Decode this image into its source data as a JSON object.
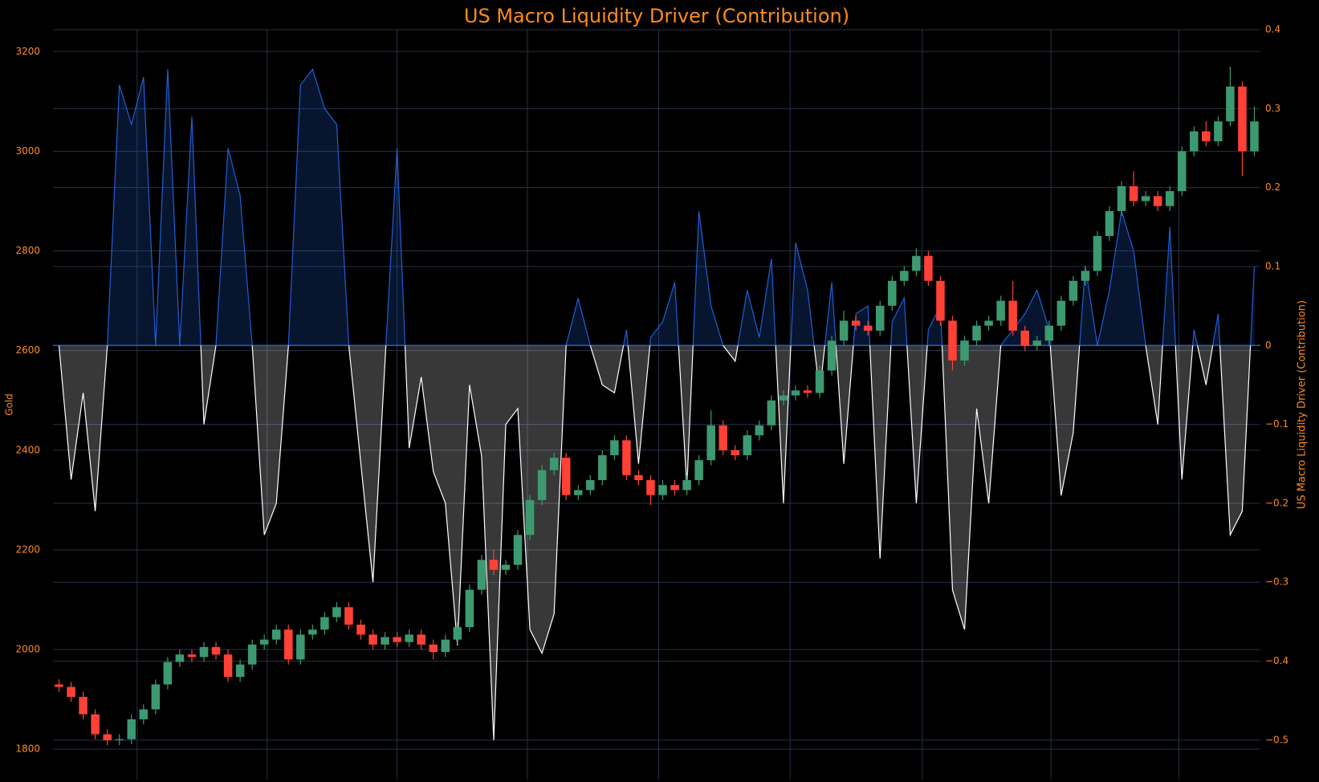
{
  "chart_data": [
    {
      "type": "candlestick",
      "title": "US Macro Liquidity Driver (Contribution)",
      "y_label": "Gold",
      "ylim": [
        1739,
        3244
      ],
      "yticks": [
        1800,
        2000,
        2200,
        2400,
        2600,
        2800,
        3000,
        3200
      ],
      "grid": true,
      "up_color": "#3d9970",
      "down_color": "#ff4136",
      "open": [
        1930,
        1925,
        1905,
        1870,
        1830,
        1818,
        1820,
        1860,
        1880,
        1930,
        1975,
        1990,
        1985,
        2005,
        1990,
        1945,
        1970,
        2010,
        2020,
        2040,
        1980,
        2030,
        2040,
        2065,
        2085,
        2050,
        2030,
        2010,
        2025,
        2015,
        2030,
        2010,
        1995,
        2020,
        2045,
        2120,
        2180,
        2160,
        2170,
        2230,
        2300,
        2360,
        2385,
        2310,
        2320,
        2340,
        2390,
        2420,
        2350,
        2340,
        2310,
        2330,
        2320,
        2340,
        2380,
        2450,
        2400,
        2390,
        2430,
        2450,
        2500,
        2510,
        2520,
        2515,
        2560,
        2620,
        2660,
        2650,
        2640,
        2690,
        2740,
        2760,
        2790,
        2740,
        2660,
        2580,
        2620,
        2650,
        2660,
        2700,
        2640,
        2610,
        2620,
        2650,
        2700,
        2740,
        2760,
        2830,
        2880,
        2930,
        2900,
        2910,
        2890,
        2920,
        3000,
        3040,
        3020,
        3060,
        3130,
        3000
      ],
      "high": [
        1940,
        1935,
        1915,
        1880,
        1840,
        1830,
        1870,
        1890,
        1940,
        1985,
        2000,
        2000,
        2015,
        2015,
        2000,
        1980,
        2020,
        2030,
        2050,
        2050,
        2040,
        2050,
        2075,
        2095,
        2095,
        2060,
        2040,
        2035,
        2035,
        2040,
        2040,
        2020,
        2030,
        2055,
        2130,
        2190,
        2200,
        2180,
        2240,
        2310,
        2370,
        2395,
        2395,
        2330,
        2350,
        2400,
        2430,
        2430,
        2360,
        2350,
        2340,
        2340,
        2350,
        2390,
        2480,
        2460,
        2410,
        2440,
        2460,
        2510,
        2520,
        2530,
        2530,
        2570,
        2630,
        2680,
        2670,
        2660,
        2700,
        2750,
        2770,
        2805,
        2800,
        2750,
        2670,
        2630,
        2660,
        2670,
        2710,
        2740,
        2650,
        2630,
        2660,
        2710,
        2750,
        2770,
        2840,
        2890,
        2940,
        2960,
        2920,
        2920,
        2930,
        3010,
        3050,
        3060,
        3070,
        3170,
        3140,
        3090
      ],
      "low": [
        1915,
        1895,
        1860,
        1820,
        1808,
        1808,
        1810,
        1850,
        1870,
        1920,
        1965,
        1975,
        1975,
        1980,
        1935,
        1935,
        1960,
        2000,
        2010,
        1970,
        1970,
        2020,
        2030,
        2055,
        2040,
        2020,
        2000,
        2000,
        2005,
        2005,
        2000,
        1980,
        1985,
        2010,
        2035,
        2110,
        2150,
        2150,
        2160,
        2220,
        2290,
        2350,
        2300,
        2300,
        2310,
        2330,
        2380,
        2340,
        2330,
        2290,
        2300,
        2310,
        2310,
        2330,
        2370,
        2390,
        2380,
        2380,
        2420,
        2440,
        2490,
        2500,
        2505,
        2505,
        2550,
        2610,
        2640,
        2630,
        2630,
        2680,
        2730,
        2750,
        2730,
        2650,
        2560,
        2570,
        2610,
        2640,
        2650,
        2630,
        2600,
        2600,
        2610,
        2640,
        2690,
        2730,
        2750,
        2820,
        2870,
        2890,
        2890,
        2880,
        2880,
        2910,
        2990,
        3010,
        3010,
        3050,
        2950,
        2990
      ],
      "close": [
        1925,
        1905,
        1870,
        1830,
        1818,
        1820,
        1860,
        1880,
        1930,
        1975,
        1990,
        1985,
        2005,
        1990,
        1945,
        1970,
        2010,
        2020,
        2040,
        1980,
        2030,
        2040,
        2065,
        2085,
        2050,
        2030,
        2010,
        2025,
        2015,
        2030,
        2010,
        1995,
        2020,
        2045,
        2120,
        2180,
        2160,
        2170,
        2230,
        2300,
        2360,
        2385,
        2310,
        2320,
        2340,
        2390,
        2420,
        2350,
        2340,
        2310,
        2330,
        2320,
        2340,
        2380,
        2450,
        2400,
        2390,
        2430,
        2450,
        2500,
        2510,
        2520,
        2515,
        2560,
        2620,
        2660,
        2650,
        2640,
        2690,
        2740,
        2760,
        2790,
        2740,
        2660,
        2580,
        2620,
        2650,
        2660,
        2700,
        2640,
        2610,
        2620,
        2650,
        2700,
        2740,
        2760,
        2830,
        2880,
        2930,
        2900,
        2910,
        2890,
        2920,
        3000,
        3040,
        3020,
        3060,
        3130,
        3000,
        3060
      ]
    },
    {
      "type": "area",
      "y_label": "US Macro Liquidity Driver (Contribution)",
      "axis": "y2",
      "y2lim": [
        -0.55,
        0.4
      ],
      "y2ticks": [
        {
          "value": -0.5,
          "label": "−0.5"
        },
        {
          "value": -0.4,
          "label": "−0.4"
        },
        {
          "value": -0.3,
          "label": "−0.3"
        },
        {
          "value": -0.2,
          "label": "−0.2"
        },
        {
          "value": -0.1,
          "label": "−0.1"
        },
        0,
        0.1,
        0.2,
        0.3,
        0.4
      ],
      "positive_color": "#1f5fd6",
      "negative_color": "#ffffff",
      "values": [
        0.0,
        -0.17,
        -0.06,
        -0.21,
        0.0,
        0.33,
        0.28,
        0.34,
        0.0,
        0.35,
        0.0,
        0.29,
        -0.1,
        0.0,
        0.25,
        0.19,
        0.0,
        -0.24,
        -0.2,
        0.0,
        0.33,
        0.35,
        0.3,
        0.28,
        0.0,
        -0.15,
        -0.3,
        -0.02,
        0.25,
        -0.13,
        -0.04,
        -0.16,
        -0.2,
        -0.38,
        -0.05,
        -0.14,
        -0.5,
        -0.1,
        -0.08,
        -0.36,
        -0.39,
        -0.34,
        0.0,
        0.06,
        0.0,
        -0.05,
        -0.06,
        0.02,
        -0.15,
        0.01,
        0.03,
        0.08,
        -0.18,
        0.17,
        0.05,
        0.0,
        -0.02,
        0.07,
        0.01,
        0.11,
        -0.2,
        0.13,
        0.07,
        -0.06,
        0.08,
        -0.15,
        0.04,
        0.05,
        -0.27,
        0.03,
        0.06,
        -0.2,
        0.02,
        0.05,
        -0.31,
        -0.36,
        -0.08,
        -0.2,
        0.0,
        0.02,
        0.04,
        0.07,
        0.02,
        -0.19,
        -0.11,
        0.1,
        0.0,
        0.07,
        0.17,
        0.12,
        0.0,
        -0.1,
        0.15,
        -0.17,
        0.02,
        -0.05,
        0.04,
        -0.24,
        -0.21,
        0.1
      ]
    }
  ]
}
